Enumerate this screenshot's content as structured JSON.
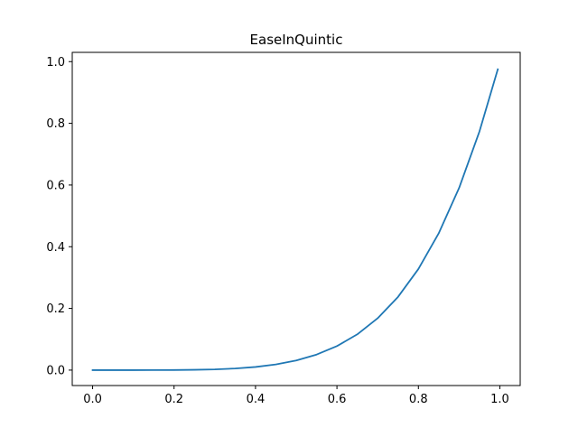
{
  "chart_data": {
    "type": "line",
    "title": "EaseInQuintic",
    "xlabel": "",
    "ylabel": "",
    "xlim": [
      -0.05,
      1.05
    ],
    "ylim": [
      -0.05,
      1.03
    ],
    "x_ticks": [
      0.0,
      0.2,
      0.4,
      0.6,
      0.8,
      1.0
    ],
    "y_ticks": [
      0.0,
      0.2,
      0.4,
      0.6,
      0.8,
      1.0
    ],
    "x_tick_labels": [
      "0.0",
      "0.2",
      "0.4",
      "0.6",
      "0.8",
      "1.0"
    ],
    "y_tick_labels": [
      "0.0",
      "0.2",
      "0.4",
      "0.6",
      "0.8",
      "1.0"
    ],
    "grid": false,
    "series": [
      {
        "color": "#1f77b4",
        "x": [
          0.0,
          0.05,
          0.1,
          0.15,
          0.2,
          0.25,
          0.3,
          0.35,
          0.4,
          0.45,
          0.5,
          0.55,
          0.6,
          0.65,
          0.7,
          0.75,
          0.8,
          0.85,
          0.9,
          0.95,
          0.995
        ],
        "y": [
          0.0,
          0.0,
          0.0,
          0.0001,
          0.0003,
          0.001,
          0.0024,
          0.0053,
          0.0102,
          0.0185,
          0.0313,
          0.0503,
          0.0778,
          0.116,
          0.1681,
          0.2373,
          0.3277,
          0.4437,
          0.5905,
          0.7738,
          0.9752
        ]
      }
    ]
  }
}
